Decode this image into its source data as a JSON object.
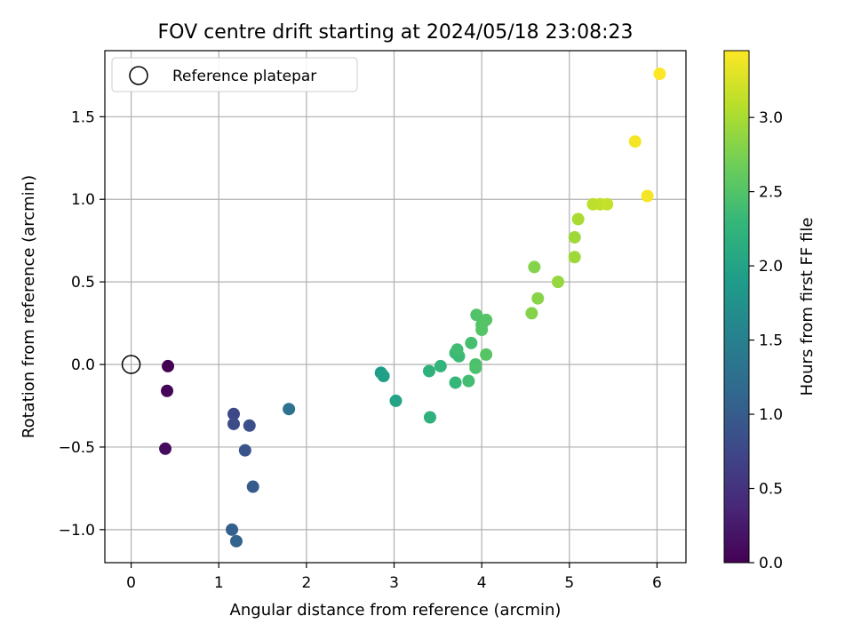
{
  "chart_data": {
    "type": "scatter",
    "title": "FOV centre drift starting at 2024/05/18 23:08:23",
    "xlabel": "Angular distance from reference (arcmin)",
    "ylabel": "Rotation from reference (arcmin)",
    "xlim": [
      -0.3,
      6.33
    ],
    "ylim": [
      -1.2,
      1.9
    ],
    "xticks": [
      0,
      1,
      2,
      3,
      4,
      5,
      6
    ],
    "xtick_labels": [
      "0",
      "1",
      "2",
      "3",
      "4",
      "5",
      "6"
    ],
    "yticks": [
      -1.0,
      -0.5,
      0.0,
      0.5,
      1.0,
      1.5
    ],
    "ytick_labels": [
      "−1.0",
      "−0.5",
      "0.0",
      "0.5",
      "1.0",
      "1.5"
    ],
    "grid": true,
    "legend_position": "top-left",
    "reference_point": {
      "label": "Reference platepar",
      "x": 0.0,
      "y": 0.0
    },
    "colorbar": {
      "label": "Hours from first FF file",
      "colormap": "viridis",
      "range": [
        0.0,
        3.45
      ],
      "ticks": [
        0.0,
        0.5,
        1.0,
        1.5,
        2.0,
        2.5,
        3.0
      ],
      "tick_labels": [
        "0.0",
        "0.5",
        "1.0",
        "1.5",
        "2.0",
        "2.5",
        "3.0"
      ]
    },
    "points": [
      {
        "x": 0.42,
        "y": -0.01,
        "c": 0.0
      },
      {
        "x": 0.41,
        "y": -0.16,
        "c": 0.05
      },
      {
        "x": 0.39,
        "y": -0.51,
        "c": 0.1
      },
      {
        "x": 1.17,
        "y": -0.3,
        "c": 0.75
      },
      {
        "x": 1.17,
        "y": -0.36,
        "c": 0.8
      },
      {
        "x": 1.35,
        "y": -0.37,
        "c": 0.85
      },
      {
        "x": 1.3,
        "y": -0.52,
        "c": 0.9
      },
      {
        "x": 1.39,
        "y": -0.74,
        "c": 1.0
      },
      {
        "x": 1.15,
        "y": -1.0,
        "c": 1.05
      },
      {
        "x": 1.2,
        "y": -1.07,
        "c": 1.1
      },
      {
        "x": 1.8,
        "y": -0.27,
        "c": 1.3
      },
      {
        "x": 2.85,
        "y": -0.05,
        "c": 1.9
      },
      {
        "x": 2.88,
        "y": -0.07,
        "c": 1.95
      },
      {
        "x": 3.02,
        "y": -0.22,
        "c": 2.0
      },
      {
        "x": 3.4,
        "y": -0.04,
        "c": 2.2
      },
      {
        "x": 3.41,
        "y": -0.32,
        "c": 2.2
      },
      {
        "x": 3.53,
        "y": -0.01,
        "c": 2.25
      },
      {
        "x": 3.7,
        "y": -0.11,
        "c": 2.3
      },
      {
        "x": 3.7,
        "y": 0.07,
        "c": 2.32
      },
      {
        "x": 3.74,
        "y": 0.05,
        "c": 2.35
      },
      {
        "x": 3.72,
        "y": 0.09,
        "c": 2.38
      },
      {
        "x": 3.85,
        "y": -0.1,
        "c": 2.4
      },
      {
        "x": 3.88,
        "y": 0.13,
        "c": 2.42
      },
      {
        "x": 3.93,
        "y": 0.0,
        "c": 2.45
      },
      {
        "x": 3.93,
        "y": -0.02,
        "c": 2.46
      },
      {
        "x": 3.94,
        "y": 0.3,
        "c": 2.48
      },
      {
        "x": 4.0,
        "y": 0.24,
        "c": 2.5
      },
      {
        "x": 4.0,
        "y": 0.21,
        "c": 2.51
      },
      {
        "x": 4.05,
        "y": 0.27,
        "c": 2.52
      },
      {
        "x": 4.05,
        "y": 0.06,
        "c": 2.53
      },
      {
        "x": 4.57,
        "y": 0.31,
        "c": 2.8
      },
      {
        "x": 4.6,
        "y": 0.59,
        "c": 2.8
      },
      {
        "x": 4.64,
        "y": 0.4,
        "c": 2.82
      },
      {
        "x": 4.87,
        "y": 0.5,
        "c": 2.9
      },
      {
        "x": 5.06,
        "y": 0.65,
        "c": 2.95
      },
      {
        "x": 5.06,
        "y": 0.77,
        "c": 2.95
      },
      {
        "x": 5.1,
        "y": 0.88,
        "c": 3.0
      },
      {
        "x": 5.27,
        "y": 0.97,
        "c": 3.1
      },
      {
        "x": 5.35,
        "y": 0.97,
        "c": 3.12
      },
      {
        "x": 5.43,
        "y": 0.97,
        "c": 3.14
      },
      {
        "x": 5.75,
        "y": 1.35,
        "c": 3.4
      },
      {
        "x": 5.89,
        "y": 1.02,
        "c": 3.4
      },
      {
        "x": 6.03,
        "y": 1.76,
        "c": 3.45
      }
    ]
  }
}
